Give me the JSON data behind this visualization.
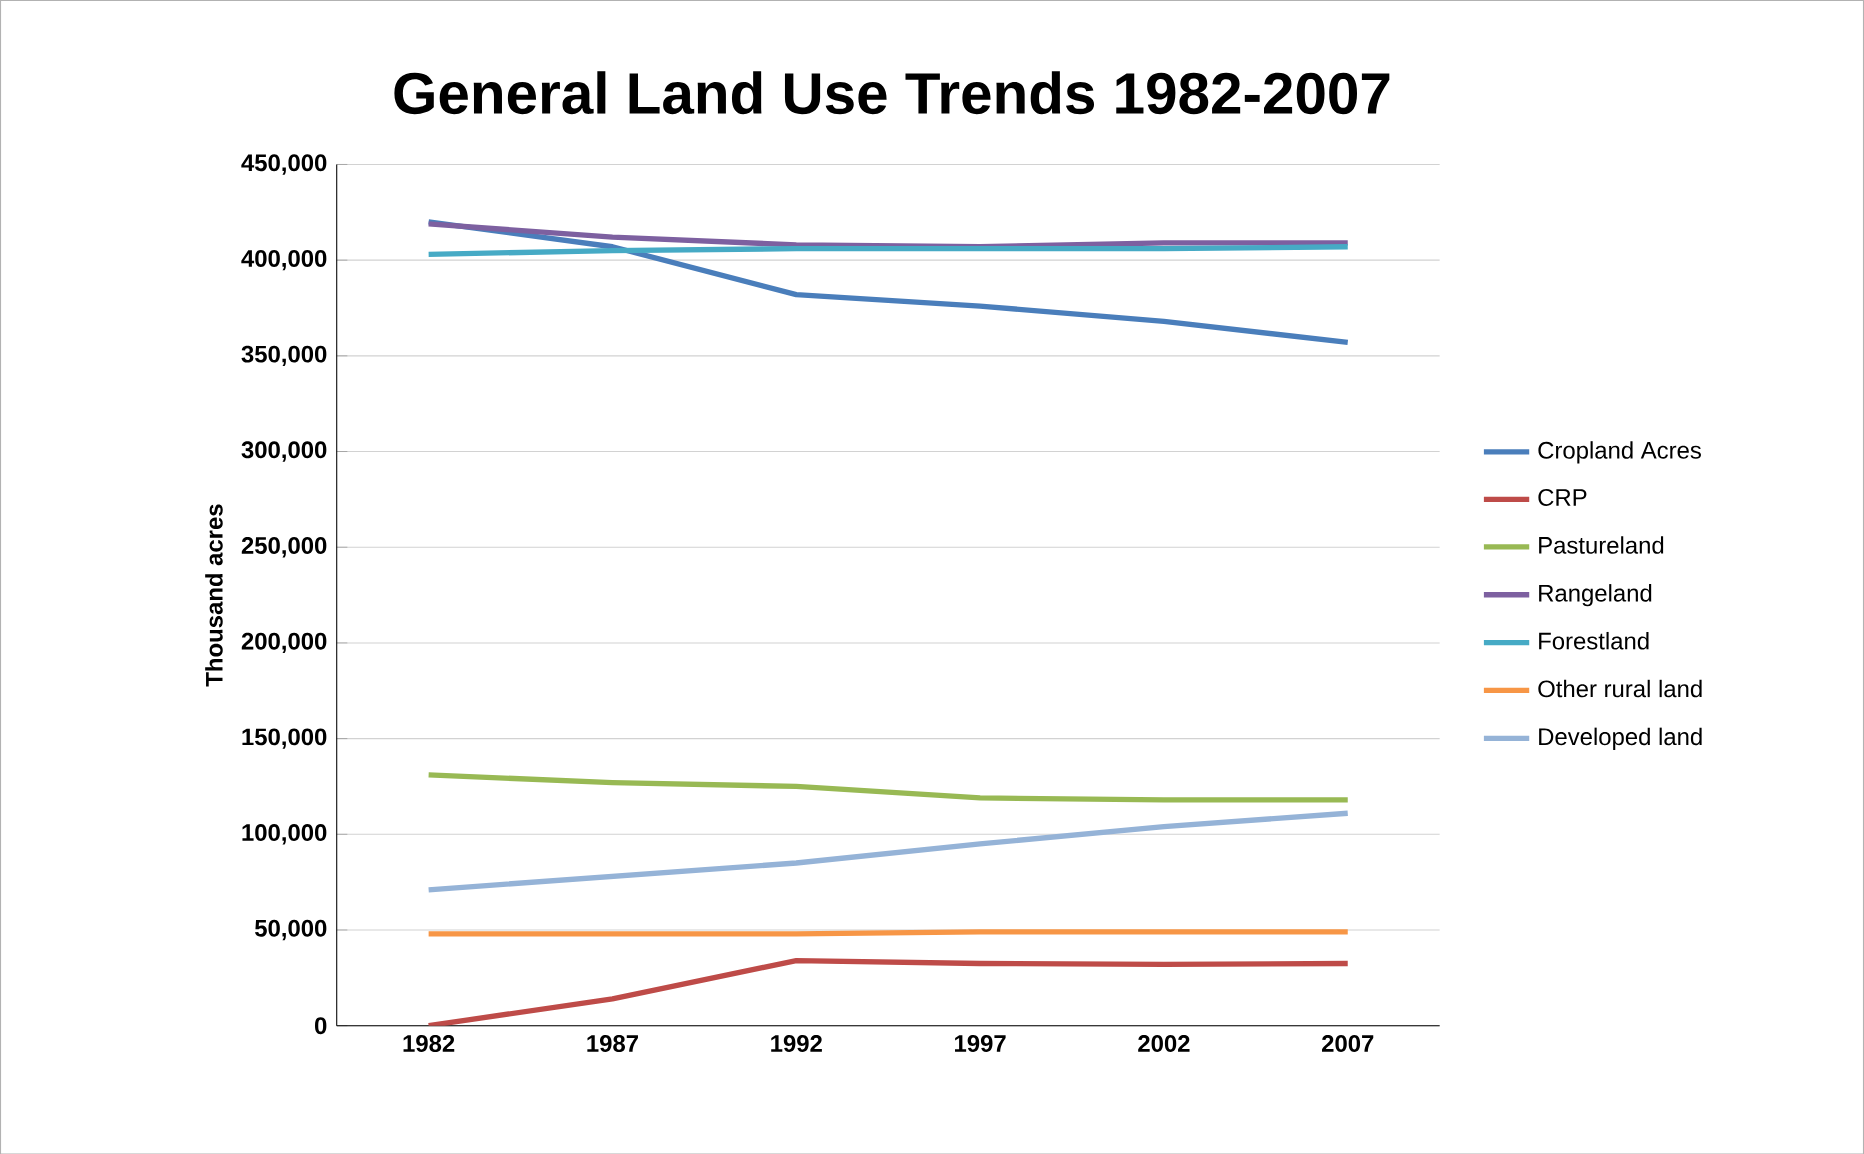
{
  "chart_data": {
    "type": "line",
    "title": "General Land Use Trends 1982-2007",
    "ylabel": "Thousand acres",
    "categories": [
      "1982",
      "1987",
      "1992",
      "1997",
      "2002",
      "2007"
    ],
    "series": [
      {
        "name": "Cropland Acres",
        "color": "#4a7ebb",
        "values": [
          420000,
          407000,
          382000,
          376000,
          368000,
          357000
        ]
      },
      {
        "name": "CRP",
        "color": "#be4b48",
        "values": [
          0,
          14000,
          34000,
          32500,
          32000,
          32500
        ]
      },
      {
        "name": "Pastureland",
        "color": "#98b954",
        "values": [
          131000,
          127000,
          125000,
          119000,
          118000,
          118000
        ]
      },
      {
        "name": "Rangeland",
        "color": "#7d60a0",
        "values": [
          419000,
          412000,
          408000,
          407000,
          409000,
          409000
        ]
      },
      {
        "name": "Forestland",
        "color": "#46aac5",
        "values": [
          403000,
          405000,
          406000,
          406000,
          406000,
          407000
        ]
      },
      {
        "name": "Other rural land",
        "color": "#f79646",
        "values": [
          48000,
          48000,
          48000,
          49000,
          49000,
          49000
        ]
      },
      {
        "name": "Developed land",
        "color": "#95b3d7",
        "values": [
          71000,
          78000,
          85000,
          95000,
          104000,
          111000
        ]
      }
    ],
    "ylim": [
      0,
      450000
    ],
    "yticks": [
      {
        "value": 0,
        "label": "0"
      },
      {
        "value": 50000,
        "label": "50,000"
      },
      {
        "value": 100000,
        "label": "100,000"
      },
      {
        "value": 150000,
        "label": "150,000"
      },
      {
        "value": 200000,
        "label": "200,000"
      },
      {
        "value": 250000,
        "label": "250,000"
      },
      {
        "value": 300000,
        "label": "300,000"
      },
      {
        "value": 350000,
        "label": "350,000"
      },
      {
        "value": 400000,
        "label": "400,000"
      },
      {
        "value": 450000,
        "label": "450,000"
      }
    ],
    "grid": "y",
    "legend": "right",
    "marker": "none",
    "line_style": "solid"
  }
}
